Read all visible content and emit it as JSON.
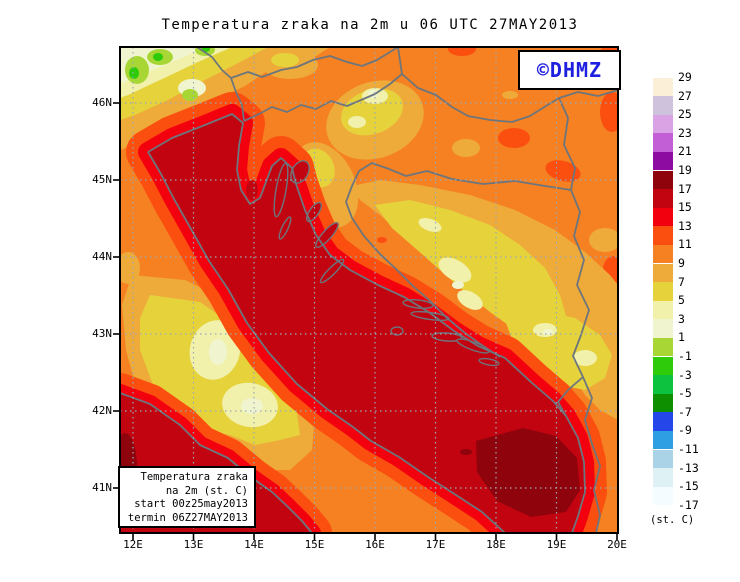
{
  "title": "Temperatura zraka na 2m u 06 UTC 27MAY2013",
  "watermark": "©DHMZ",
  "info_box": {
    "lines": [
      "Temperatura zraka",
      "na 2m (st. C)",
      "start 00z25may2013",
      "termin 06Z27MAY2013"
    ]
  },
  "axes": {
    "lat": {
      "labels": [
        "46N",
        "45N",
        "44N",
        "43N",
        "42N",
        "41N"
      ]
    },
    "lon": {
      "labels": [
        "12E",
        "13E",
        "14E",
        "15E",
        "16E",
        "17E",
        "18E",
        "19E",
        "20E"
      ]
    }
  },
  "colorbar": {
    "unit": "(st. C)",
    "tick_labels": [
      "29",
      "27",
      "25",
      "23",
      "21",
      "19",
      "17",
      "15",
      "13",
      "11",
      "9",
      "7",
      "5",
      "3",
      "1",
      "-1",
      "-3",
      "-5",
      "-7",
      "-9",
      "-11",
      "-13",
      "-15",
      "-17"
    ],
    "swatch_colors": [
      "#fcefd8",
      "#cec2dc",
      "#daa3e4",
      "#c25ed6",
      "#8e0ba2",
      "#8f030c",
      "#c10410",
      "#f2000e",
      "#fb4f10",
      "#f58122",
      "#eeab3a",
      "#e6d33c",
      "#f1f1ac",
      "#f0f5cf",
      "#a8d735",
      "#2ecb0b",
      "#0cc23f",
      "#0e8f00",
      "#2547ea",
      "#2e9fe2",
      "#abd3e8",
      "#def2f6",
      "#f4fcff"
    ]
  },
  "palette": {
    "sea_deep": "#8f030c",
    "sea_dark": "#c10410",
    "red": "#f2000e",
    "orange_red": "#fb4f10",
    "orange": "#f58122",
    "golden": "#eeab3a",
    "yellow": "#e6d33c",
    "pale_yellow": "#f1f1ac",
    "ivory": "#f0f5cf",
    "yellow_green": "#a8d735",
    "green": "#2ecb0b",
    "coast": "#6d757d",
    "grid": "#9aaab6",
    "frame": "#000000",
    "watermark_blue": "#1f1fe0"
  },
  "field_summary": {
    "type": "filled-contour temperature map, 2 m air temperature",
    "adriatic_sea": "15-19 st.C (dark red)",
    "south_adriatic_maximum": "17-19 st.C (maroon)",
    "coastal_strip": "11-15 st.C (red / orange-red)",
    "inland_plains": "9-11 st.C (orange)",
    "bosnia_apennine_highlands": "3-7 st.C (yellow / pale yellow)",
    "alps_northwest_corner": "-3 to 3 st.C (green / pale green)"
  }
}
